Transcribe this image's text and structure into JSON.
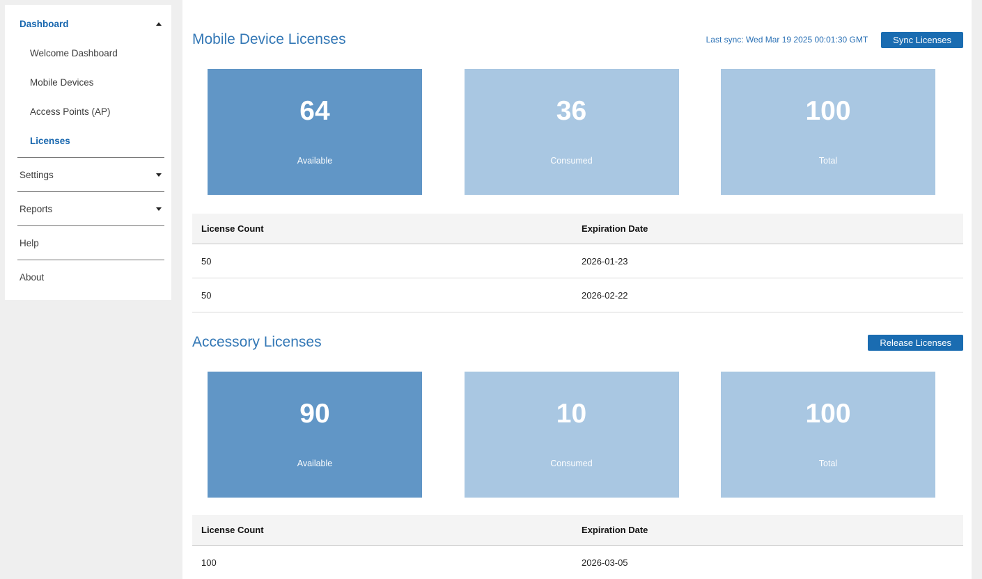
{
  "colors": {
    "accent_button": "#1a6cb1",
    "card_dark": "#6196c6",
    "card_light": "#a9c7e2",
    "section_title": "#3478b6",
    "sidebar_active": "#1766ae",
    "page_background": "#efefef"
  },
  "sidebar": {
    "dashboard_group": {
      "label": "Dashboard",
      "expanded": true
    },
    "dashboard_items": [
      {
        "label": "Welcome Dashboard",
        "active": false
      },
      {
        "label": "Mobile Devices",
        "active": false
      },
      {
        "label": "Access Points (AP)",
        "active": false
      },
      {
        "label": "Licenses",
        "active": true
      }
    ],
    "settings_label": "Settings",
    "reports_label": "Reports",
    "help_label": "Help",
    "about_label": "About"
  },
  "mobile_licenses": {
    "title": "Mobile Device Licenses",
    "last_sync": "Last sync: Wed Mar 19 2025 00:01:30 GMT",
    "sync_button": "Sync Licenses",
    "cards": [
      {
        "value": "64",
        "label": "Available",
        "style": "dark"
      },
      {
        "value": "36",
        "label": "Consumed",
        "style": "light"
      },
      {
        "value": "100",
        "label": "Total",
        "style": "light"
      }
    ],
    "table": {
      "columns": [
        "License Count",
        "Expiration Date"
      ],
      "rows": [
        {
          "license_count": "50",
          "expiration_date": "2026-01-23"
        },
        {
          "license_count": "50",
          "expiration_date": "2026-02-22"
        }
      ]
    }
  },
  "accessory_licenses": {
    "title": "Accessory Licenses",
    "release_button": "Release Licenses",
    "cards": [
      {
        "value": "90",
        "label": "Available",
        "style": "dark"
      },
      {
        "value": "10",
        "label": "Consumed",
        "style": "light"
      },
      {
        "value": "100",
        "label": "Total",
        "style": "light"
      }
    ],
    "table": {
      "columns": [
        "License Count",
        "Expiration Date"
      ],
      "rows": [
        {
          "license_count": "100",
          "expiration_date": "2026-03-05"
        }
      ]
    }
  }
}
